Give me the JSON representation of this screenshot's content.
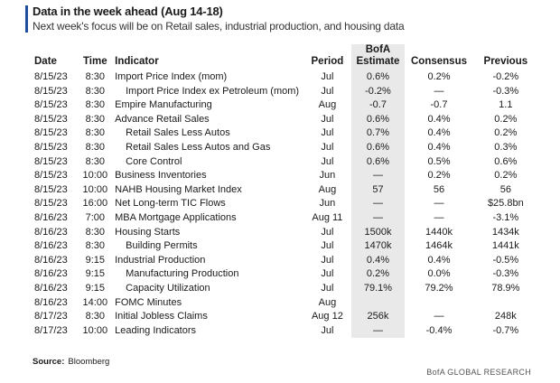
{
  "header": {
    "title": "Data in the week ahead (Aug 14-18)",
    "subtitle": "Next week's focus will be on Retail sales, industrial production, and housing data"
  },
  "table": {
    "columns": [
      "Date",
      "Time",
      "Indicator",
      "Period",
      "BofA Estimate",
      "Consensus",
      "Previous"
    ],
    "rows": [
      [
        "8/15/23",
        "8:30",
        "Import Price Index (mom)",
        "Jul",
        "0.6%",
        "0.2%",
        "-0.2%"
      ],
      [
        "8/15/23",
        "8:30",
        "Import Price Index ex Petroleum (mom)",
        "Jul",
        "-0.2%",
        "—",
        "-0.3%"
      ],
      [
        "8/15/23",
        "8:30",
        "Empire Manufacturing",
        "Aug",
        "-0.7",
        "-0.7",
        "1.1"
      ],
      [
        "8/15/23",
        "8:30",
        "Advance Retail Sales",
        "Jul",
        "0.6%",
        "0.4%",
        "0.2%"
      ],
      [
        "8/15/23",
        "8:30",
        "Retail Sales Less Autos",
        "Jul",
        "0.7%",
        "0.4%",
        "0.2%"
      ],
      [
        "8/15/23",
        "8:30",
        "Retail Sales Less Autos and Gas",
        "Jul",
        "0.6%",
        "0.4%",
        "0.3%"
      ],
      [
        "8/15/23",
        "8:30",
        "Core Control",
        "Jul",
        "0.6%",
        "0.5%",
        "0.6%"
      ],
      [
        "8/15/23",
        "10:00",
        "Business Inventories",
        "Jun",
        "—",
        "0.2%",
        "0.2%"
      ],
      [
        "8/15/23",
        "10:00",
        "NAHB Housing Market Index",
        "Aug",
        "57",
        "56",
        "56"
      ],
      [
        "8/15/23",
        "16:00",
        "Net Long-term TIC Flows",
        "Jun",
        "—",
        "—",
        "$25.8bn"
      ],
      [
        "8/16/23",
        "7:00",
        "MBA Mortgage Applications",
        "Aug 11",
        "—",
        "—",
        "-3.1%"
      ],
      [
        "8/16/23",
        "8:30",
        "Housing Starts",
        "Jul",
        "1500k",
        "1440k",
        "1434k"
      ],
      [
        "8/16/23",
        "8:30",
        "Building Permits",
        "Jul",
        "1470k",
        "1464k",
        "1441k"
      ],
      [
        "8/16/23",
        "9:15",
        "Industrial Production",
        "Jul",
        "0.4%",
        "0.4%",
        "-0.5%"
      ],
      [
        "8/16/23",
        "9:15",
        "Manufacturing Production",
        "Jul",
        "0.2%",
        "0.0%",
        "-0.3%"
      ],
      [
        "8/16/23",
        "9:15",
        "Capacity Utilization",
        "Jul",
        "79.1%",
        "79.2%",
        "78.9%"
      ],
      [
        "8/16/23",
        "14:00",
        "FOMC Minutes",
        "Aug",
        null,
        null,
        null
      ],
      [
        "8/17/23",
        "8:30",
        "Initial Jobless Claims",
        "Aug 12",
        "256k",
        "—",
        "248k"
      ],
      [
        "8/17/23",
        "10:00",
        "Leading Indicators",
        "Jul",
        "—",
        "-0.4%",
        "-0.7%"
      ]
    ]
  },
  "footer": {
    "source_label": "Source:",
    "source": "Bloomberg",
    "brand": "BofA GLOBAL RESEARCH"
  }
}
